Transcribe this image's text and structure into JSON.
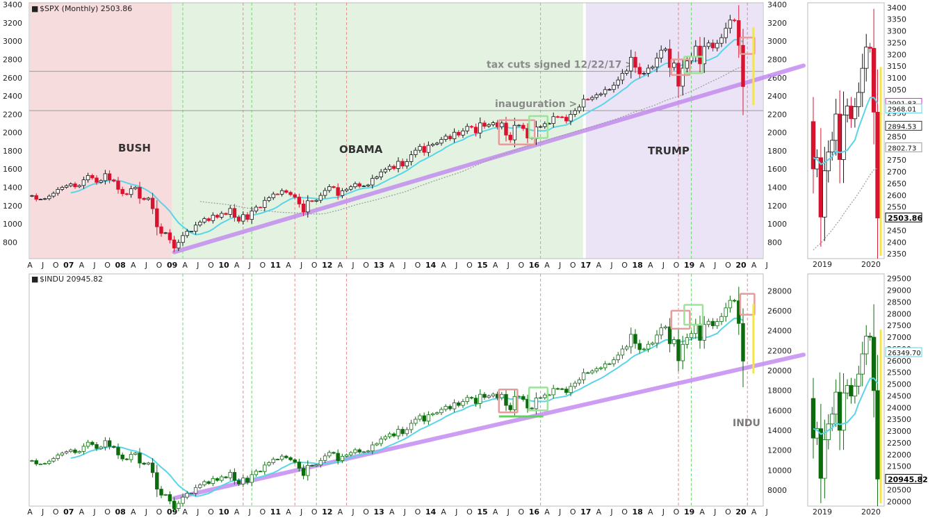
{
  "chart_data": [
    {
      "id": "spx_main",
      "type": "candlestick",
      "header": "$SPX (Monthly) 2503.86",
      "yticks": [
        800,
        1000,
        1200,
        1400,
        1600,
        1800,
        2000,
        2200,
        2400,
        2600,
        2800,
        3000,
        3200,
        3400
      ],
      "ylim": [
        620,
        3420
      ],
      "x_axis_labels": [
        "A",
        "J",
        "O",
        "07",
        "A",
        "J",
        "O",
        "08",
        "A",
        "J",
        "O",
        "09",
        "A",
        "J",
        "O",
        "10",
        "A",
        "J",
        "O",
        "11",
        "A",
        "J",
        "O",
        "12",
        "A",
        "J",
        "O",
        "13",
        "A",
        "J",
        "O",
        "14",
        "A",
        "J",
        "O",
        "15",
        "A",
        "J",
        "O",
        "16",
        "A",
        "J",
        "O",
        "17",
        "A",
        "J",
        "O",
        "18",
        "A",
        "J",
        "O",
        "19",
        "A",
        "J",
        "O",
        "20",
        "A",
        "J"
      ],
      "xlim": [
        "2006-04",
        "2020-06"
      ],
      "eras": [
        {
          "label": "BUSH",
          "from": "2006-04",
          "to": "2009-01",
          "color": "#f6dcdc"
        },
        {
          "label": "OBAMA",
          "from": "2009-01",
          "to": "2017-01",
          "color": "#e4f3e1"
        },
        {
          "label": "TRUMP",
          "from": "2017-01",
          "to": "2020-06",
          "color": "#ebe4f6"
        }
      ],
      "annotations": [
        {
          "text": "tax cuts signed 12/22/17 >",
          "level": 2670
        },
        {
          "text": "inauguration >",
          "level": 2240
        }
      ],
      "hlines": [
        2670,
        2240
      ],
      "trendline": {
        "from": [
          "2009-01",
          690
        ],
        "to": [
          "2020-07",
          2620
        ]
      },
      "vlines_green": [
        "2009-03",
        "2010-07",
        "2011-10",
        "2016-02",
        "2019-01"
      ],
      "vlines_red": [
        "2010-05",
        "2011-05",
        "2012-05",
        "2018-10",
        "2020-02"
      ],
      "boxes": [
        {
          "from": "2015-05",
          "to": "2015-12",
          "lo": 1870,
          "hi": 2135,
          "color": "#e89b9b"
        },
        {
          "from": "2015-12",
          "to": "2016-03",
          "lo": 1940,
          "hi": 2180,
          "color": "#9be39b"
        },
        {
          "from": "2018-09",
          "to": "2018-12",
          "lo": 2630,
          "hi": 2800,
          "color": "#e89b9b"
        },
        {
          "from": "2018-12",
          "to": "2019-03",
          "lo": 2650,
          "hi": 2830,
          "color": "#9be39b"
        },
        {
          "from": "2020-01",
          "to": "2020-03",
          "lo": 2860,
          "hi": 3040,
          "color": "#e89b9b"
        }
      ],
      "yellow_bar": {
        "month": "2020-03",
        "lo": 2300,
        "hi": 3150
      },
      "series": [
        {
          "name": "SPX",
          "kind": "ohlc_monthly",
          "start": "2006-04",
          "close": [
            1310,
            1270,
            1270,
            1276,
            1304,
            1335,
            1377,
            1400,
            1418,
            1438,
            1406,
            1420,
            1482,
            1530,
            1503,
            1455,
            1473,
            1549,
            1481,
            1468,
            1378,
            1330,
            1322,
            1385,
            1400,
            1280,
            1267,
            1282,
            1166,
            968,
            896,
            903,
            825,
            735,
            797,
            872,
            919,
            919,
            987,
            1020,
            1057,
            1036,
            1095,
            1073,
            1115,
            1104,
            1169,
            1073,
            1030,
            1101,
            1049,
            1141,
            1183,
            1180,
            1257,
            1286,
            1327,
            1325,
            1364,
            1345,
            1320,
            1292,
            1218,
            1131,
            1253,
            1247,
            1258,
            1312,
            1366,
            1408,
            1398,
            1310,
            1362,
            1379,
            1406,
            1440,
            1412,
            1416,
            1426,
            1498,
            1514,
            1569,
            1597,
            1631,
            1606,
            1685,
            1633,
            1682,
            1757,
            1806,
            1848,
            1783,
            1859,
            1872,
            1884,
            1924,
            1960,
            1931,
            2003,
            1972,
            2018,
            2067,
            2059,
            1995,
            2105,
            2068,
            2085,
            2107,
            2063,
            2104,
            1972,
            1920,
            2079,
            2080,
            2044,
            1940,
            1932,
            2060,
            2065,
            2097,
            2099,
            2174,
            2171,
            2168,
            2126,
            2199,
            2239,
            2279,
            2364,
            2363,
            2384,
            2412,
            2423,
            2470,
            2471,
            2519,
            2575,
            2648,
            2674,
            2824,
            2714,
            2641,
            2648,
            2705,
            2718,
            2816,
            2901,
            2914,
            2712,
            2760,
            2507,
            2704,
            2784,
            2834,
            2946,
            2752,
            2942,
            2980,
            2926,
            2977,
            3038,
            3141,
            3231,
            3226,
            2954,
            2503
          ]
        },
        {
          "name": "short MA",
          "kind": "line",
          "color": "#5ad4e8"
        },
        {
          "name": "long MA",
          "kind": "line",
          "color": "#9a9a9a",
          "style": "dotted"
        }
      ]
    },
    {
      "id": "spx_zoom",
      "type": "candlestick",
      "yticks": [
        2350,
        2400,
        2450,
        2500,
        2550,
        2600,
        2650,
        2700,
        2750,
        2800,
        2850,
        2900,
        2950,
        3000,
        3050,
        3100,
        3150,
        3200,
        3250,
        3300,
        3350,
        3400
      ],
      "ylim": [
        2330,
        3420
      ],
      "x_axis_labels": [
        "2019",
        "2020"
      ],
      "badges": [
        {
          "text": "2991.83",
          "value": 2991.83,
          "color": "#e020e0"
        },
        {
          "text": "2968.01",
          "value": 2968.01,
          "color": "#5ad4e8"
        },
        {
          "text": "2894.53",
          "value": 2894.53,
          "color": "#333333"
        },
        {
          "text": "2802.73",
          "value": 2802.73,
          "color": "#999999"
        },
        {
          "text": "2503.86",
          "value": 2503.86,
          "color": "#000000",
          "strong": true
        }
      ]
    },
    {
      "id": "indu_main",
      "type": "candlestick",
      "header": "$INDU 20945.82",
      "watermark": "INDU",
      "yticks": [
        8000,
        10000,
        12000,
        14000,
        16000,
        18000,
        20000,
        22000,
        24000,
        26000,
        28000
      ],
      "ylim": [
        6400,
        29700
      ],
      "x_axis_labels": [
        "A",
        "J",
        "O",
        "07",
        "A",
        "J",
        "O",
        "08",
        "A",
        "J",
        "O",
        "09",
        "A",
        "J",
        "O",
        "10",
        "A",
        "J",
        "O",
        "11",
        "A",
        "J",
        "O",
        "12",
        "A",
        "J",
        "O",
        "13",
        "A",
        "J",
        "O",
        "14",
        "A",
        "J",
        "O",
        "15",
        "A",
        "J",
        "O",
        "16",
        "A",
        "J",
        "O",
        "17",
        "A",
        "J",
        "O",
        "18",
        "A",
        "J",
        "O",
        "19",
        "A",
        "J",
        "O",
        "20",
        "A",
        "J"
      ],
      "trendline": {
        "from": [
          "2009-01",
          7200
        ],
        "to": [
          "2020-07",
          20800
        ]
      },
      "boxes": [
        {
          "from": "2015-05",
          "to": "2015-08",
          "lo": 15800,
          "hi": 18100,
          "color": "#e89b9b"
        },
        {
          "from": "2015-12",
          "to": "2016-03",
          "lo": 16000,
          "hi": 18300,
          "color": "#9be39b"
        },
        {
          "from": "2018-09",
          "to": "2018-12",
          "lo": 24200,
          "hi": 26000,
          "color": "#e89b9b"
        },
        {
          "from": "2018-12",
          "to": "2019-03",
          "lo": 24600,
          "hi": 26600,
          "color": "#9be39b"
        },
        {
          "from": "2020-01",
          "to": "2020-03",
          "lo": 25600,
          "hi": 27700,
          "color": "#e89b9b"
        }
      ],
      "support_line": {
        "from": "2015-05",
        "to": "2016-02",
        "level": 15400,
        "color": "#5fd35f"
      },
      "yellow_bar": {
        "month": "2020-03",
        "lo": 19700,
        "hi": 26700
      }
    },
    {
      "id": "indu_zoom",
      "type": "candlestick",
      "yticks": [
        20000,
        20500,
        21000,
        21500,
        22000,
        22500,
        23000,
        23500,
        24000,
        24500,
        25000,
        25500,
        26000,
        26500,
        27000,
        27500,
        28000,
        28500,
        29000,
        29500
      ],
      "ylim": [
        19800,
        29700
      ],
      "x_axis_labels": [
        "2019",
        "2020"
      ],
      "badges": [
        {
          "text": "26349.70",
          "value": 26349.7,
          "color": "#5ad4e8"
        },
        {
          "text": "20945.82",
          "value": 20945.82,
          "color": "#000000",
          "strong": true
        }
      ]
    }
  ]
}
